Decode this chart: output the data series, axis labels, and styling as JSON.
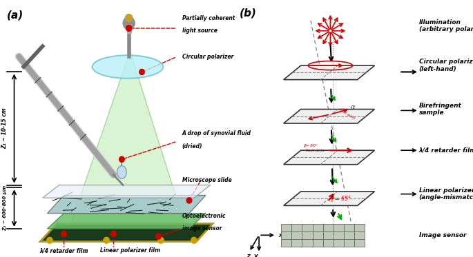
{
  "panel_a_label": "(a)",
  "panel_b_label": "(b)",
  "annotations_a": [
    "Partially coherent\nlight source",
    "Circular polarizer",
    "A drop of synovial fluid\n(dried)",
    "Microscope slide",
    "Optoelectronic\nimage sensor",
    "λ/4 retarder film",
    "Linear polarizer film"
  ],
  "z1_label": "Z₁ ~ 10-15 cm",
  "z2_label": "Z₂ ~ 600-800 μm",
  "panel_b_labels": [
    "Illumination\n(arbitrary polarization)",
    "Circular polarizer\n(left-hand)",
    "Birefringent\nsample",
    "λ/4 retarder film",
    "Linear polarizer\n(angle-mismatched)",
    "Image sensor"
  ],
  "birefringent_angle_label": "α",
  "retarder_label": "β=90°\nfast axis",
  "fast_axis_label": "fast axis",
  "gamma_label": "γ = 65°",
  "x_label": "x",
  "y_label": "y",
  "z_label": "z",
  "bg_color": "#ffffff",
  "red_color": "#cc0000",
  "green_color": "#00aa00",
  "dark_red": "#8b0000",
  "black": "#000000",
  "plate_fill": "#f5f5f5",
  "plate_edge": "#333333",
  "cone_green": "#90ee90",
  "sensor_fill": "#b8c8b8",
  "slide_fill": "#d0e8f0",
  "device_fill": "#2e5c2e",
  "device_edge": "#c8a000"
}
